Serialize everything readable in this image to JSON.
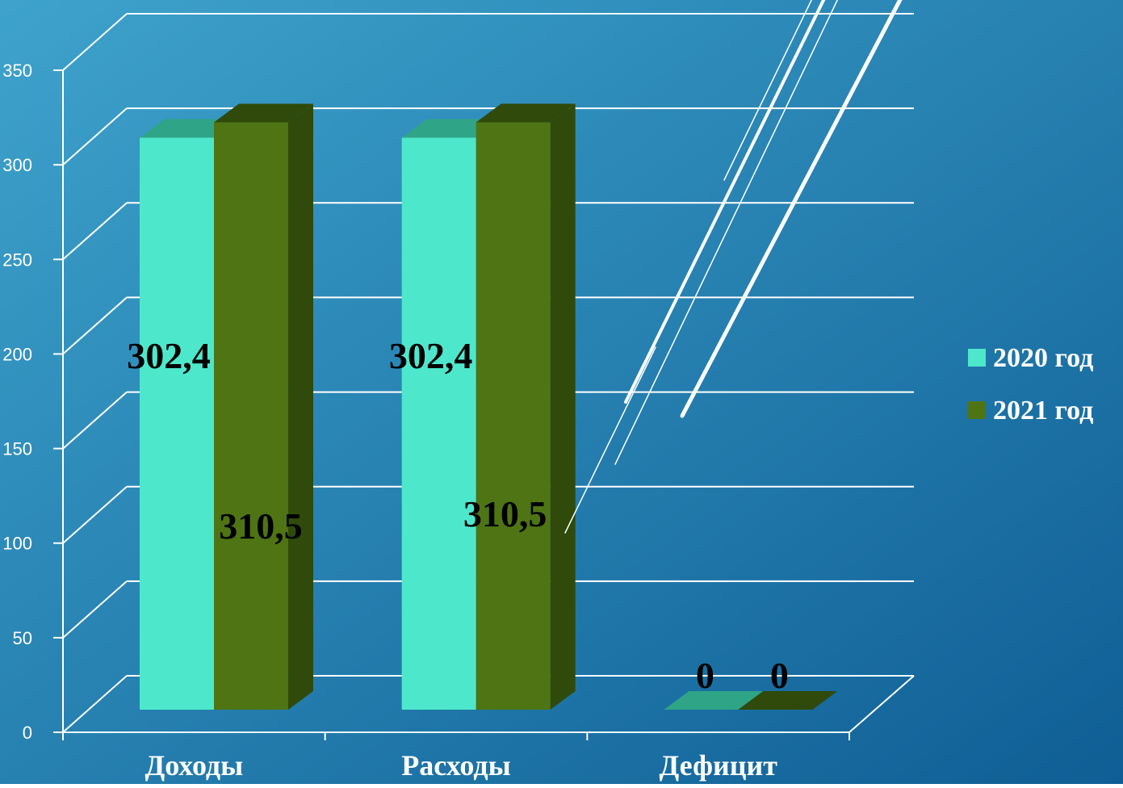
{
  "chart_data": {
    "type": "bar",
    "categories": [
      "Доходы",
      "Расходы",
      "Дефицит"
    ],
    "series": [
      {
        "name": "2020 год",
        "values": [
          302.4,
          302.4,
          0
        ],
        "labels": [
          "302,4",
          "302,4",
          "0"
        ],
        "color": "#4de8cc"
      },
      {
        "name": "2021 год",
        "values": [
          310.5,
          310.5,
          0
        ],
        "labels": [
          "310,5",
          "310,5",
          "0"
        ],
        "color": "#4e7414"
      }
    ],
    "y_ticks": [
      "0",
      "50",
      "100",
      "150",
      "200",
      "250",
      "300",
      "350"
    ],
    "ylim": [
      0,
      350
    ],
    "grid": true,
    "style": "3d-clustered-column",
    "legend_position": "right"
  },
  "colors": {
    "background_top": "#3ea3cc",
    "background_bottom": "#0f5e95",
    "grid": "#ffffff",
    "series_2020_side": "#2fa487",
    "series_2021_side": "#2f4a0b"
  }
}
